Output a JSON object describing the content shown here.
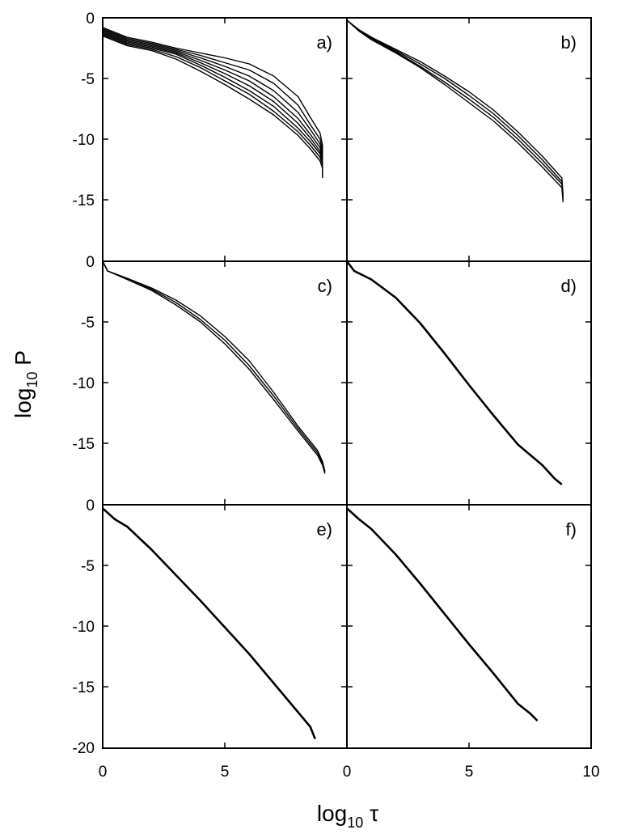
{
  "chart_data": {
    "type": "line",
    "xlabel": {
      "main": "log",
      "sub": "10",
      "sym": "τ"
    },
    "ylabel": {
      "main": "log",
      "sub": "10",
      "sym": "P"
    },
    "xlim": [
      0,
      10
    ],
    "x_ticks": [
      "0",
      "5",
      "0",
      "5",
      "10"
    ],
    "panels": [
      {
        "label": "a)",
        "ylim": [
          0,
          -15
        ],
        "y_ticks": [
          "0",
          "-5",
          "-10",
          "-15"
        ],
        "series": [
          {
            "points": [
              [
                0,
                -0.8
              ],
              [
                0.5,
                -1.2
              ],
              [
                1,
                -1.6
              ],
              [
                2,
                -2.0
              ],
              [
                3,
                -2.5
              ],
              [
                4,
                -2.9
              ],
              [
                5,
                -3.3
              ],
              [
                6,
                -3.8
              ],
              [
                7,
                -4.8
              ],
              [
                8,
                -6.5
              ],
              [
                8.5,
                -8.2
              ],
              [
                8.9,
                -9.5
              ],
              [
                9.0,
                -10.5
              ],
              [
                9.0,
                -12.2
              ]
            ]
          },
          {
            "points": [
              [
                0,
                -0.9
              ],
              [
                0.5,
                -1.3
              ],
              [
                1,
                -1.7
              ],
              [
                2,
                -2.1
              ],
              [
                3,
                -2.6
              ],
              [
                4,
                -3.1
              ],
              [
                5,
                -3.7
              ],
              [
                6,
                -4.3
              ],
              [
                7,
                -5.4
              ],
              [
                8,
                -7.2
              ],
              [
                8.5,
                -8.8
              ],
              [
                8.9,
                -10.0
              ],
              [
                9.0,
                -10.9
              ],
              [
                9.0,
                -12.4
              ]
            ]
          },
          {
            "points": [
              [
                0,
                -1.0
              ],
              [
                0.5,
                -1.4
              ],
              [
                1,
                -1.8
              ],
              [
                2,
                -2.2
              ],
              [
                3,
                -2.7
              ],
              [
                4,
                -3.3
              ],
              [
                5,
                -4.0
              ],
              [
                6,
                -4.8
              ],
              [
                7,
                -6.0
              ],
              [
                8,
                -7.8
              ],
              [
                8.5,
                -9.2
              ],
              [
                8.9,
                -10.4
              ],
              [
                9.0,
                -11.2
              ],
              [
                9.0,
                -12.6
              ]
            ]
          },
          {
            "points": [
              [
                0,
                -1.1
              ],
              [
                0.5,
                -1.5
              ],
              [
                1,
                -1.9
              ],
              [
                2,
                -2.3
              ],
              [
                3,
                -2.8
              ],
              [
                4,
                -3.5
              ],
              [
                5,
                -4.3
              ],
              [
                6,
                -5.2
              ],
              [
                7,
                -6.5
              ],
              [
                8,
                -8.3
              ],
              [
                8.5,
                -9.6
              ],
              [
                8.9,
                -10.7
              ],
              [
                9.0,
                -11.4
              ],
              [
                9.0,
                -12.7
              ]
            ]
          },
          {
            "points": [
              [
                0,
                -1.2
              ],
              [
                0.5,
                -1.6
              ],
              [
                1,
                -2.0
              ],
              [
                2,
                -2.4
              ],
              [
                3,
                -2.9
              ],
              [
                4,
                -3.7
              ],
              [
                5,
                -4.6
              ],
              [
                6,
                -5.6
              ],
              [
                7,
                -6.9
              ],
              [
                8,
                -8.7
              ],
              [
                8.5,
                -9.9
              ],
              [
                8.9,
                -11.0
              ],
              [
                9.0,
                -11.7
              ],
              [
                9.0,
                -12.8
              ]
            ]
          },
          {
            "points": [
              [
                0,
                -1.3
              ],
              [
                0.5,
                -1.7
              ],
              [
                1,
                -2.1
              ],
              [
                2,
                -2.5
              ],
              [
                3,
                -3.0
              ],
              [
                4,
                -3.9
              ],
              [
                5,
                -4.9
              ],
              [
                6,
                -6.0
              ],
              [
                7,
                -7.3
              ],
              [
                8,
                -9.1
              ],
              [
                8.5,
                -10.2
              ],
              [
                8.9,
                -11.2
              ],
              [
                9.0,
                -11.9
              ],
              [
                9.0,
                -12.9
              ]
            ]
          },
          {
            "points": [
              [
                0,
                -1.4
              ],
              [
                0.5,
                -1.8
              ],
              [
                1,
                -2.2
              ],
              [
                2,
                -2.6
              ],
              [
                3,
                -3.2
              ],
              [
                4,
                -4.1
              ],
              [
                5,
                -5.2
              ],
              [
                6,
                -6.3
              ],
              [
                7,
                -7.7
              ],
              [
                8,
                -9.4
              ],
              [
                8.5,
                -10.5
              ],
              [
                8.9,
                -11.5
              ],
              [
                9.0,
                -12.1
              ],
              [
                9.0,
                -13.0
              ]
            ]
          },
          {
            "points": [
              [
                0,
                -1.5
              ],
              [
                0.5,
                -1.9
              ],
              [
                1,
                -2.3
              ],
              [
                2,
                -2.7
              ],
              [
                3,
                -3.4
              ],
              [
                4,
                -4.4
              ],
              [
                5,
                -5.5
              ],
              [
                6,
                -6.7
              ],
              [
                7,
                -8.0
              ],
              [
                8,
                -9.7
              ],
              [
                8.5,
                -10.8
              ],
              [
                8.9,
                -11.8
              ],
              [
                9.0,
                -12.4
              ],
              [
                9.0,
                -13.2
              ]
            ]
          }
        ]
      },
      {
        "label": "b)",
        "ylim": [
          0,
          -15
        ],
        "y_ticks": [],
        "series": [
          {
            "points": [
              [
                0,
                -0.2
              ],
              [
                0.5,
                -1.0
              ],
              [
                1,
                -1.6
              ],
              [
                2,
                -2.6
              ],
              [
                3,
                -3.6
              ],
              [
                4,
                -4.8
              ],
              [
                5,
                -6.1
              ],
              [
                6,
                -7.6
              ],
              [
                7,
                -9.4
              ],
              [
                8,
                -11.4
              ],
              [
                8.8,
                -13.2
              ],
              [
                8.85,
                -14.6
              ]
            ]
          },
          {
            "points": [
              [
                0,
                -0.2
              ],
              [
                0.5,
                -1.0
              ],
              [
                1,
                -1.6
              ],
              [
                2,
                -2.7
              ],
              [
                3,
                -3.8
              ],
              [
                4,
                -5.0
              ],
              [
                5,
                -6.4
              ],
              [
                6,
                -7.9
              ],
              [
                7,
                -9.7
              ],
              [
                8,
                -11.7
              ],
              [
                8.8,
                -13.5
              ],
              [
                8.85,
                -14.8
              ]
            ]
          },
          {
            "points": [
              [
                0,
                -0.2
              ],
              [
                0.5,
                -1.1
              ],
              [
                1,
                -1.7
              ],
              [
                2,
                -2.8
              ],
              [
                3,
                -4.0
              ],
              [
                4,
                -5.3
              ],
              [
                5,
                -6.7
              ],
              [
                6,
                -8.2
              ],
              [
                7,
                -10.0
              ],
              [
                8,
                -12.0
              ],
              [
                8.8,
                -13.7
              ],
              [
                8.85,
                -15.0
              ]
            ]
          },
          {
            "points": [
              [
                0,
                -0.2
              ],
              [
                0.5,
                -1.1
              ],
              [
                1,
                -1.8
              ],
              [
                2,
                -2.9
              ],
              [
                3,
                -4.1
              ],
              [
                4,
                -5.5
              ],
              [
                5,
                -7.0
              ],
              [
                6,
                -8.5
              ],
              [
                7,
                -10.3
              ],
              [
                8,
                -12.3
              ],
              [
                8.8,
                -14.0
              ],
              [
                8.85,
                -15.2
              ]
            ]
          }
        ]
      },
      {
        "label": "c)",
        "ylim": [
          0,
          -20
        ],
        "y_ticks": [
          "0",
          "-5",
          "-10",
          "-15"
        ],
        "series": [
          {
            "points": [
              [
                0,
                0
              ],
              [
                0.2,
                -0.8
              ],
              [
                1,
                -1.4
              ],
              [
                2,
                -2.2
              ],
              [
                3,
                -3.2
              ],
              [
                4,
                -4.5
              ],
              [
                5,
                -6.2
              ],
              [
                6,
                -8.2
              ],
              [
                7,
                -10.8
              ],
              [
                8,
                -13.6
              ],
              [
                8.8,
                -15.6
              ],
              [
                9.0,
                -16.5
              ],
              [
                9.1,
                -17.3
              ]
            ]
          },
          {
            "points": [
              [
                0,
                0
              ],
              [
                0.2,
                -0.8
              ],
              [
                1,
                -1.4
              ],
              [
                2,
                -2.3
              ],
              [
                3,
                -3.4
              ],
              [
                4,
                -4.8
              ],
              [
                5,
                -6.5
              ],
              [
                6,
                -8.6
              ],
              [
                7,
                -11.1
              ],
              [
                8,
                -13.8
              ],
              [
                8.8,
                -15.8
              ],
              [
                9.0,
                -16.6
              ],
              [
                9.1,
                -17.4
              ]
            ]
          },
          {
            "points": [
              [
                0,
                0
              ],
              [
                0.2,
                -0.8
              ],
              [
                1,
                -1.5
              ],
              [
                2,
                -2.4
              ],
              [
                3,
                -3.6
              ],
              [
                4,
                -5.0
              ],
              [
                5,
                -6.8
              ],
              [
                6,
                -8.9
              ],
              [
                7,
                -11.4
              ],
              [
                8,
                -14.0
              ],
              [
                8.8,
                -16.0
              ],
              [
                9.0,
                -16.8
              ],
              [
                9.1,
                -17.5
              ]
            ]
          }
        ]
      },
      {
        "label": "d)",
        "ylim": [
          0,
          -20
        ],
        "y_ticks": [],
        "series": [
          {
            "points": [
              [
                0,
                0
              ],
              [
                0.3,
                -0.8
              ],
              [
                1,
                -1.5
              ],
              [
                2,
                -3.0
              ],
              [
                3,
                -5.1
              ],
              [
                4,
                -7.6
              ],
              [
                5,
                -10.2
              ],
              [
                6,
                -12.7
              ],
              [
                7,
                -15.1
              ],
              [
                8,
                -16.8
              ],
              [
                8.5,
                -17.9
              ],
              [
                8.8,
                -18.4
              ]
            ]
          }
        ]
      },
      {
        "label": "e)",
        "ylim": [
          0,
          -20
        ],
        "y_ticks": [
          "0",
          "-5",
          "-10",
          "-15",
          "-20"
        ],
        "series": [
          {
            "points": [
              [
                0,
                -0.3
              ],
              [
                0.5,
                -1.2
              ],
              [
                1,
                -1.8
              ],
              [
                2,
                -3.7
              ],
              [
                3,
                -5.8
              ],
              [
                4,
                -7.9
              ],
              [
                5,
                -10.1
              ],
              [
                6,
                -12.3
              ],
              [
                7,
                -14.7
              ],
              [
                8,
                -17.1
              ],
              [
                8.5,
                -18.3
              ],
              [
                8.7,
                -19.3
              ]
            ]
          }
        ]
      },
      {
        "label": "f)",
        "ylim": [
          0,
          -20
        ],
        "y_ticks": [],
        "series": [
          {
            "points": [
              [
                0,
                -0.3
              ],
              [
                0.5,
                -1.2
              ],
              [
                1,
                -2.0
              ],
              [
                2,
                -4.1
              ],
              [
                3,
                -6.5
              ],
              [
                4,
                -9.0
              ],
              [
                5,
                -11.5
              ],
              [
                6,
                -13.9
              ],
              [
                7,
                -16.4
              ],
              [
                7.5,
                -17.2
              ],
              [
                7.8,
                -17.8
              ]
            ]
          }
        ]
      }
    ]
  }
}
